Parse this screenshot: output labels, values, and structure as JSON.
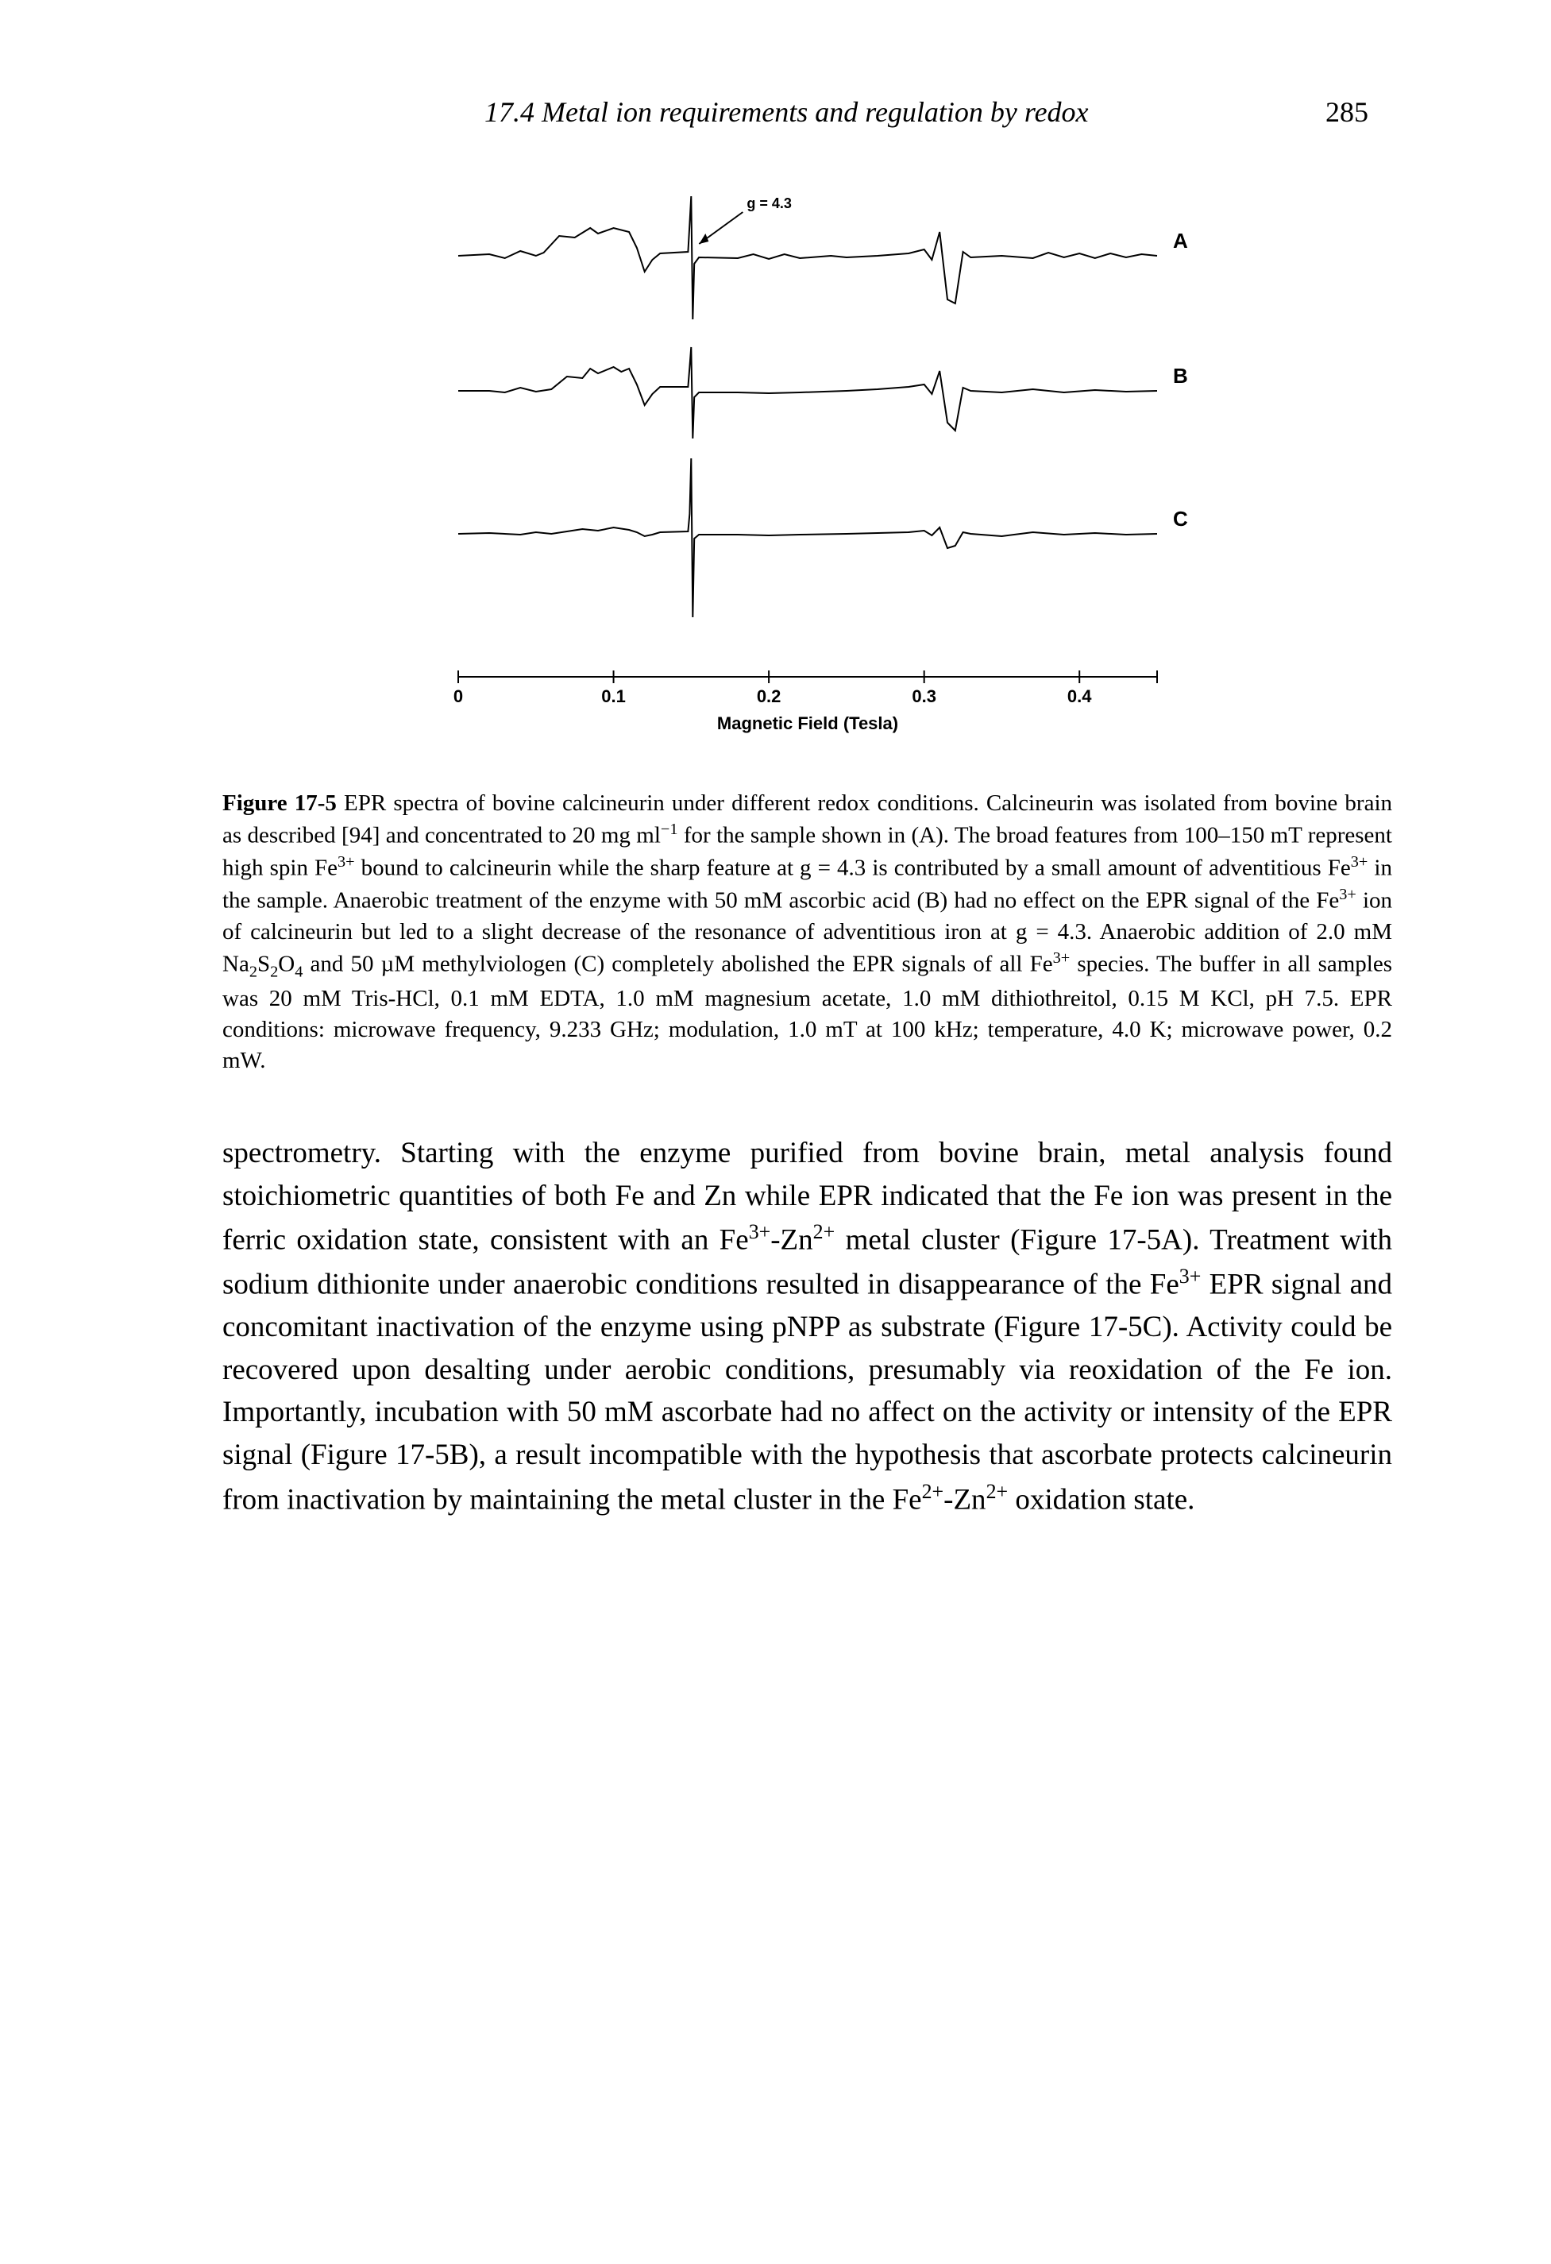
{
  "header": {
    "section": "17.4  Metal ion requirements and regulation by redox",
    "page_number": "285"
  },
  "figure": {
    "label": "Figure 17-5",
    "g_annotation": "g = 4.3",
    "trace_labels": [
      "A",
      "B",
      "C"
    ],
    "x_axis_label": "Magnetic Field  (Tesla)",
    "x_ticks": [
      "0",
      "0.1",
      "0.2",
      "0.3",
      "0.4"
    ],
    "x_range": [
      0,
      0.45
    ],
    "trace_color": "#000000",
    "background_color": "#ffffff",
    "line_width": 2.0,
    "axis_fontsize": 22,
    "label_fontsize": 22,
    "trace_label_fontsize": 26,
    "g_fontsize": 18,
    "traces": [
      {
        "id": "A",
        "baseline_y": 90,
        "points": [
          [
            0.0,
            0
          ],
          [
            0.02,
            2
          ],
          [
            0.03,
            -3
          ],
          [
            0.04,
            6
          ],
          [
            0.05,
            0
          ],
          [
            0.055,
            4
          ],
          [
            0.065,
            25
          ],
          [
            0.075,
            23
          ],
          [
            0.085,
            35
          ],
          [
            0.09,
            28
          ],
          [
            0.1,
            35
          ],
          [
            0.11,
            30
          ],
          [
            0.115,
            10
          ],
          [
            0.12,
            -20
          ],
          [
            0.125,
            -5
          ],
          [
            0.13,
            3
          ],
          [
            0.148,
            5
          ],
          [
            0.149,
            40
          ],
          [
            0.15,
            75
          ],
          [
            0.151,
            -80
          ],
          [
            0.152,
            -10
          ],
          [
            0.155,
            -2
          ],
          [
            0.18,
            -3
          ],
          [
            0.19,
            2
          ],
          [
            0.2,
            -4
          ],
          [
            0.21,
            2
          ],
          [
            0.22,
            -3
          ],
          [
            0.24,
            0
          ],
          [
            0.25,
            -2
          ],
          [
            0.27,
            0
          ],
          [
            0.29,
            3
          ],
          [
            0.3,
            8
          ],
          [
            0.305,
            -5
          ],
          [
            0.31,
            30
          ],
          [
            0.315,
            -55
          ],
          [
            0.32,
            -60
          ],
          [
            0.325,
            5
          ],
          [
            0.33,
            -2
          ],
          [
            0.35,
            0
          ],
          [
            0.37,
            -3
          ],
          [
            0.38,
            4
          ],
          [
            0.39,
            -2
          ],
          [
            0.4,
            3
          ],
          [
            0.41,
            -3
          ],
          [
            0.42,
            3
          ],
          [
            0.43,
            -2
          ],
          [
            0.44,
            2
          ],
          [
            0.45,
            0
          ]
        ]
      },
      {
        "id": "B",
        "baseline_y": 260,
        "points": [
          [
            0.0,
            0
          ],
          [
            0.02,
            0
          ],
          [
            0.03,
            -2
          ],
          [
            0.04,
            4
          ],
          [
            0.05,
            -1
          ],
          [
            0.06,
            2
          ],
          [
            0.07,
            18
          ],
          [
            0.08,
            16
          ],
          [
            0.085,
            28
          ],
          [
            0.09,
            22
          ],
          [
            0.1,
            30
          ],
          [
            0.105,
            24
          ],
          [
            0.11,
            28
          ],
          [
            0.115,
            8
          ],
          [
            0.12,
            -18
          ],
          [
            0.125,
            -4
          ],
          [
            0.13,
            5
          ],
          [
            0.148,
            5
          ],
          [
            0.149,
            30
          ],
          [
            0.15,
            55
          ],
          [
            0.151,
            -60
          ],
          [
            0.152,
            -8
          ],
          [
            0.155,
            -2
          ],
          [
            0.18,
            -2
          ],
          [
            0.2,
            -3
          ],
          [
            0.22,
            -2
          ],
          [
            0.25,
            0
          ],
          [
            0.27,
            2
          ],
          [
            0.29,
            5
          ],
          [
            0.3,
            8
          ],
          [
            0.305,
            -4
          ],
          [
            0.31,
            25
          ],
          [
            0.315,
            -40
          ],
          [
            0.32,
            -50
          ],
          [
            0.325,
            4
          ],
          [
            0.33,
            0
          ],
          [
            0.35,
            -2
          ],
          [
            0.37,
            2
          ],
          [
            0.39,
            -2
          ],
          [
            0.41,
            1
          ],
          [
            0.43,
            -1
          ],
          [
            0.45,
            0
          ]
        ]
      },
      {
        "id": "C",
        "baseline_y": 440,
        "points": [
          [
            0.0,
            0
          ],
          [
            0.02,
            1
          ],
          [
            0.04,
            -1
          ],
          [
            0.05,
            2
          ],
          [
            0.06,
            0
          ],
          [
            0.07,
            3
          ],
          [
            0.08,
            6
          ],
          [
            0.09,
            4
          ],
          [
            0.1,
            8
          ],
          [
            0.11,
            5
          ],
          [
            0.115,
            2
          ],
          [
            0.12,
            -3
          ],
          [
            0.125,
            -1
          ],
          [
            0.13,
            2
          ],
          [
            0.148,
            3
          ],
          [
            0.149,
            25
          ],
          [
            0.15,
            95
          ],
          [
            0.151,
            -105
          ],
          [
            0.152,
            -6
          ],
          [
            0.155,
            -1
          ],
          [
            0.18,
            -1
          ],
          [
            0.2,
            -2
          ],
          [
            0.22,
            -1
          ],
          [
            0.25,
            0
          ],
          [
            0.27,
            1
          ],
          [
            0.29,
            2
          ],
          [
            0.3,
            4
          ],
          [
            0.305,
            -2
          ],
          [
            0.31,
            8
          ],
          [
            0.315,
            -18
          ],
          [
            0.32,
            -15
          ],
          [
            0.325,
            2
          ],
          [
            0.33,
            0
          ],
          [
            0.35,
            -3
          ],
          [
            0.37,
            2
          ],
          [
            0.39,
            -1
          ],
          [
            0.41,
            1
          ],
          [
            0.43,
            -1
          ],
          [
            0.45,
            0
          ]
        ]
      }
    ]
  },
  "caption": {
    "text_before_ref": " EPR spectra of bovine calcineurin under different redox conditions. Calcineurin was isolated from bovine brain as described [94] and concentrated to 20 mg ml",
    "sup1": "−1",
    "after_sup1": " for the sample shown in (A). The broad features from 100–150 mT represent high spin Fe",
    "sup2": "3+",
    "after_sup2": " bound to calcineurin while the sharp feature at g = 4.3 is contributed by a small amount of adventitious Fe",
    "sup3": "3+",
    "after_sup3": " in the sample. Anaerobic treatment of the enzyme with 50 mM ascorbic acid (B) had no effect on the EPR signal of the Fe",
    "sup4": "3+",
    "after_sup4": " ion of calcineurin but led to a slight decrease of the resonance of adventitious iron at g = 4.3. Anaerobic addition of 2.0 mM Na",
    "sub1": "2",
    "mid1": "S",
    "sub2": "2",
    "mid2": "O",
    "sub3": "4",
    "after_sub3": " and 50 µM methylviologen (C) completely abolished the EPR signals of all Fe",
    "sup5": "3+",
    "after_sup5": " species. The buffer in all samples was 20 mM Tris-HCl, 0.1 mM EDTA, 1.0 mM magnesium acetate, 1.0 mM dithiothreitol, 0.15 M KCl, pH 7.5. EPR conditions: microwave frequency, 9.233 GHz; modulation, 1.0 mT at 100 kHz; temperature, 4.0 K; microwave power, 0.2 mW."
  },
  "body": {
    "p1_a": "spectrometry. Starting with the enzyme purified from bovine brain, metal analysis found stoichiometric quantities of both Fe and Zn while EPR indicated that the Fe ion was present in the ferric oxidation state, consistent with an Fe",
    "p1_sup1": "3+",
    "p1_b": "-Zn",
    "p1_sup2": "2+",
    "p1_c": " metal cluster (Figure 17-5A). Treatment with sodium dithionite under anaerobic conditions resulted in disappearance of the Fe",
    "p1_sup3": "3+",
    "p1_d": " EPR signal and concomitant inactivation of the enzyme using pNPP as substrate (Figure 17-5C). Activity could be recovered upon desalting under aerobic conditions, presumably via reoxidation of the Fe ion. Importantly, incubation with 50 mM ascorbate had no affect on the activity or intensity of the EPR signal (Figure 17-5B), a result incompatible with the hypothesis that ascorbate protects calcineurin from inactivation by maintaining the metal cluster in the Fe",
    "p1_sup4": "2+",
    "p1_e": "-Zn",
    "p1_sup5": "2+",
    "p1_f": " oxidation state."
  }
}
